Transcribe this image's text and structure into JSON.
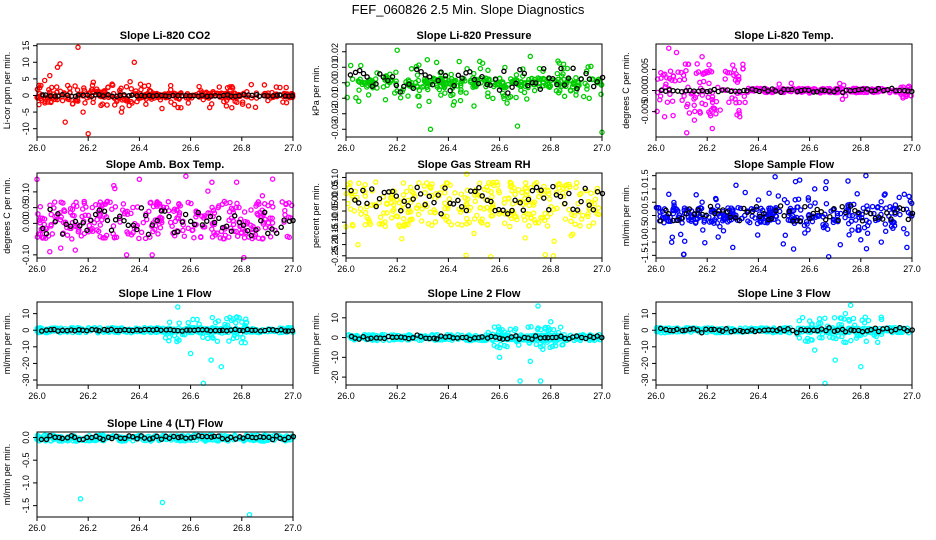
{
  "figure": {
    "title": "FEF_060826  2.5 Min. Slope Diagnostics",
    "overlay_color": "#000000"
  },
  "chart_data": [
    {
      "id": "co2",
      "type": "scatter",
      "title": "Slope Li-820 CO2",
      "ylabel": "Li-cor ppm per min.",
      "color": "#ff0000",
      "xlim": [
        26.0,
        27.0
      ],
      "ylim": [
        -12.5,
        15.5
      ],
      "yticks": [
        -10,
        -5,
        0,
        5,
        10,
        15
      ],
      "ytick_labels": [
        "-10",
        "-5",
        "0",
        "5",
        "10",
        "15"
      ],
      "xticks": [
        26.0,
        26.2,
        26.4,
        26.6,
        26.8,
        27.0
      ],
      "xtick_labels": [
        "26.0",
        "26.2",
        "26.4",
        "26.6",
        "26.8",
        "27.0"
      ],
      "band": [
        -0.8,
        0.8
      ],
      "early": {
        "until": 26.4,
        "spread": 2.2
      },
      "late": {
        "from": 2,
        "spread": 0
      },
      "sparse": [],
      "outlier_rate": 0.2,
      "outliers": [
        [
          26.05,
          6
        ],
        [
          26.08,
          8.5
        ],
        [
          26.09,
          9.5
        ],
        [
          26.11,
          -8
        ],
        [
          26.16,
          14.5
        ],
        [
          26.2,
          -11.5
        ],
        [
          26.12,
          3
        ],
        [
          26.18,
          -5
        ],
        [
          26.25,
          -3
        ],
        [
          26.22,
          4
        ],
        [
          26.33,
          -5
        ],
        [
          26.38,
          10
        ],
        [
          26.14,
          -2.5
        ],
        [
          26.03,
          4.5
        ],
        [
          26.44,
          1.5
        ],
        [
          26.42,
          2.8
        ]
      ],
      "black_band": [
        -0.25,
        0.25
      ],
      "black_spread": 0
    },
    {
      "id": "pressure",
      "type": "scatter",
      "title": "Slope Li-820 Pressure",
      "ylabel": "kPa per min.",
      "color": "#00cc00",
      "xlim": [
        26.0,
        27.0
      ],
      "ylim": [
        -0.035,
        0.025
      ],
      "yticks": [
        -0.03,
        -0.02,
        -0.01,
        0.0,
        0.01,
        0.02
      ],
      "ytick_labels": [
        "-0.03",
        "-0.02",
        "-0.01",
        "0.00",
        "0.01",
        "0.02"
      ],
      "xticks": [
        26.0,
        26.2,
        26.4,
        26.6,
        26.8,
        27.0
      ],
      "xtick_labels": [
        "26.0",
        "26.2",
        "26.4",
        "26.6",
        "26.8",
        "27.0"
      ],
      "band": [
        -0.003,
        0.003
      ],
      "early": {
        "until": 26.0,
        "spread": 0
      },
      "late": {
        "from": 2,
        "spread": 0
      },
      "sparse": [],
      "outlier_rate": 0.4,
      "outliers": [
        [
          26.2,
          0.021
        ],
        [
          26.33,
          -0.03
        ],
        [
          26.67,
          -0.028
        ],
        [
          26.72,
          0.017
        ],
        [
          27.0,
          -0.032
        ],
        [
          26.05,
          -0.012
        ],
        [
          26.5,
          -0.015
        ],
        [
          26.85,
          0.012
        ],
        [
          26.95,
          -0.01
        ]
      ],
      "black_band": [
        -0.004,
        0.008
      ],
      "black_spread": 0.004
    },
    {
      "id": "temp",
      "type": "scatter",
      "title": "Slope Li-820 Temp.",
      "ylabel": "degrees C per min.",
      "color": "#ff00ff",
      "xlim": [
        26.0,
        27.0
      ],
      "ylim": [
        -0.011,
        0.011
      ],
      "yticks": [
        -0.005,
        0.0,
        0.005
      ],
      "ytick_labels": [
        "-0.005",
        "0.000",
        "0.005"
      ],
      "xticks": [
        26.0,
        26.2,
        26.4,
        26.6,
        26.8,
        27.0
      ],
      "xtick_labels": [
        "26.0",
        "26.2",
        "26.4",
        "26.6",
        "26.8",
        "27.0"
      ],
      "band": [
        -0.0005,
        0.0005
      ],
      "early": {
        "until": 26.35,
        "spread": 0.006
      },
      "late": {
        "from": 26.95,
        "spread": 0.0015
      },
      "sparse": [],
      "outlier_rate": 0.05,
      "outliers": [
        [
          26.05,
          0.01
        ],
        [
          26.08,
          0.009
        ],
        [
          26.12,
          -0.01
        ],
        [
          26.18,
          0.008
        ],
        [
          26.22,
          -0.009
        ],
        [
          26.3,
          0.006
        ],
        [
          26.15,
          -0.007
        ]
      ],
      "black_band": [
        -0.0003,
        0.0003
      ],
      "black_spread": 0.0003
    },
    {
      "id": "boxtemp",
      "type": "scatter",
      "title": "Slope Amb. Box Temp.",
      "ylabel": "degrees C per min.",
      "color": "#ff00ff",
      "xlim": [
        26.0,
        27.0
      ],
      "ylim": [
        -0.11,
        0.16
      ],
      "yticks": [
        -0.1,
        0.0,
        0.05,
        0.1
      ],
      "ytick_labels": [
        "-0.10",
        "0.00",
        "0.05",
        "0.10"
      ],
      "xticks": [
        26.0,
        26.2,
        26.4,
        26.6,
        26.8,
        27.0
      ],
      "xtick_labels": [
        "26.0",
        "26.2",
        "26.4",
        "26.6",
        "26.8",
        "27.0"
      ],
      "band": [
        -0.05,
        0.07
      ],
      "early": {
        "until": 26.0,
        "spread": 0
      },
      "late": {
        "from": 2,
        "spread": 0
      },
      "sparse": [],
      "outlier_rate": 0.1,
      "outliers": [
        [
          26.0,
          0.14
        ],
        [
          26.4,
          0.14
        ],
        [
          26.35,
          -0.1
        ],
        [
          26.05,
          -0.09
        ],
        [
          26.45,
          -0.1
        ],
        [
          26.3,
          0.12
        ]
      ],
      "black_band": [
        -0.04,
        0.05
      ],
      "black_spread": 0
    },
    {
      "id": "rh",
      "type": "scatter",
      "title": "Slope Gas Stream RH",
      "ylabel": "percent per min.",
      "color": "#ffff00",
      "xlim": [
        26.0,
        27.0
      ],
      "ylim": [
        -0.26,
        0.12
      ],
      "yticks": [
        -0.25,
        -0.2,
        -0.15,
        -0.1,
        -0.05,
        0.0,
        0.05,
        0.1
      ],
      "ytick_labels": [
        "-0.25",
        "-0.20",
        "-0.15",
        "-0.10",
        "-0.05",
        "0.00",
        "0.05",
        "0.10"
      ],
      "xticks": [
        26.0,
        26.2,
        26.4,
        26.6,
        26.8,
        27.0
      ],
      "xtick_labels": [
        "26.0",
        "26.2",
        "26.4",
        "26.6",
        "26.8",
        "27.0"
      ],
      "band": [
        -0.12,
        0.08
      ],
      "early": {
        "until": 26.0,
        "spread": 0
      },
      "late": {
        "from": 2,
        "spread": 0
      },
      "sparse": [],
      "outlier_rate": 0.1,
      "outliers": [
        [
          26.81,
          -0.25
        ],
        [
          26.7,
          -0.17
        ],
        [
          26.88,
          -0.16
        ],
        [
          26.0,
          -0.12
        ],
        [
          26.5,
          -0.15
        ]
      ],
      "black_band": [
        -0.07,
        0.06
      ],
      "black_spread": 0.01
    },
    {
      "id": "sampleflow",
      "type": "scatter",
      "title": "Slope Sample Flow",
      "ylabel": "ml/min per min.",
      "color": "#0000ff",
      "xlim": [
        26.0,
        27.0
      ],
      "ylim": [
        -1.6,
        1.6
      ],
      "yticks": [
        -1.5,
        -1.0,
        -0.5,
        0.0,
        0.5,
        1.0,
        1.5
      ],
      "ytick_labels": [
        "-1.5",
        "-1.0",
        "-0.5",
        "0.0",
        "0.5",
        "1.0",
        "1.5"
      ],
      "xticks": [
        26.0,
        26.2,
        26.4,
        26.6,
        26.8,
        27.0
      ],
      "xtick_labels": [
        "26.0",
        "26.2",
        "26.4",
        "26.6",
        "26.8",
        "27.0"
      ],
      "band": [
        -0.3,
        0.3
      ],
      "early": {
        "until": 26.0,
        "spread": 0
      },
      "late": {
        "from": 26.55,
        "spread": 0.5
      },
      "sparse": [],
      "outlier_rate": 0.2,
      "outliers": [
        [
          26.3,
          -1.2
        ],
        [
          26.05,
          0.8
        ],
        [
          26.75,
          1.3
        ],
        [
          26.82,
          1.5
        ],
        [
          26.97,
          0.8
        ],
        [
          26.98,
          -1.2
        ],
        [
          26.18,
          0.5
        ],
        [
          26.88,
          -1.0
        ],
        [
          26.62,
          1.0
        ],
        [
          26.72,
          -1.1
        ]
      ],
      "black_band": [
        -0.2,
        0.35
      ],
      "black_spread": 0.1
    },
    {
      "id": "line1",
      "type": "scatter",
      "title": "Slope Line 1 Flow",
      "ylabel": "ml/min per min.",
      "color": "#00ffff",
      "xlim": [
        26.0,
        27.0
      ],
      "ylim": [
        -33,
        17
      ],
      "yticks": [
        -30,
        -20,
        -10,
        0,
        10
      ],
      "ytick_labels": [
        "-30",
        "-20",
        "-10",
        "0",
        "10"
      ],
      "xticks": [
        26.0,
        26.2,
        26.4,
        26.6,
        26.8,
        27.0
      ],
      "xtick_labels": [
        "26.0",
        "26.2",
        "26.4",
        "26.6",
        "26.8",
        "27.0"
      ],
      "band": [
        -1.5,
        1.5
      ],
      "early": {
        "until": 26.0,
        "spread": 0
      },
      "late": {
        "from": 2,
        "spread": 0
      },
      "sparse": [
        [
          26.5,
          26.82,
          8
        ]
      ],
      "outlier_rate": 0,
      "outliers": [
        [
          26.65,
          -32
        ],
        [
          26.72,
          -22
        ],
        [
          26.55,
          14
        ],
        [
          26.6,
          -14
        ],
        [
          26.68,
          -18
        ],
        [
          26.78,
          8
        ]
      ],
      "black_band": [
        -0.5,
        0.5
      ],
      "black_spread": 0
    },
    {
      "id": "line2",
      "type": "scatter",
      "title": "Slope Line 2 Flow",
      "ylabel": "ml/min per min.",
      "color": "#00ffff",
      "xlim": [
        26.0,
        27.0
      ],
      "ylim": [
        -24,
        18
      ],
      "yticks": [
        -20,
        -10,
        0,
        10
      ],
      "ytick_labels": [
        "-20",
        "-10",
        "0",
        "10"
      ],
      "xticks": [
        26.0,
        26.2,
        26.4,
        26.6,
        26.8,
        27.0
      ],
      "xtick_labels": [
        "26.0",
        "26.2",
        "26.4",
        "26.6",
        "26.8",
        "27.0"
      ],
      "band": [
        -1.5,
        1.5
      ],
      "early": {
        "until": 26.0,
        "spread": 0
      },
      "late": {
        "from": 2,
        "spread": 0
      },
      "sparse": [
        [
          26.55,
          26.85,
          6
        ]
      ],
      "outlier_rate": 0,
      "outliers": [
        [
          26.76,
          -22
        ],
        [
          26.68,
          -22
        ],
        [
          26.75,
          16
        ],
        [
          26.72,
          -12
        ],
        [
          26.6,
          -10
        ],
        [
          26.8,
          8
        ]
      ],
      "black_band": [
        -0.8,
        0.8
      ],
      "black_spread": 0.5
    },
    {
      "id": "line3",
      "type": "scatter",
      "title": "Slope Line 3 Flow",
      "ylabel": "ml/min per min.",
      "color": "#00ffff",
      "xlim": [
        26.0,
        27.0
      ],
      "ylim": [
        -33,
        17
      ],
      "yticks": [
        -30,
        -20,
        -10,
        0,
        10
      ],
      "ytick_labels": [
        "-30",
        "-20",
        "-10",
        "0",
        "10"
      ],
      "xticks": [
        26.0,
        26.2,
        26.4,
        26.6,
        26.8,
        27.0
      ],
      "xtick_labels": [
        "26.0",
        "26.2",
        "26.4",
        "26.6",
        "26.8",
        "27.0"
      ],
      "band": [
        -1.5,
        1.5
      ],
      "early": {
        "until": 26.0,
        "spread": 0
      },
      "late": {
        "from": 2,
        "spread": 0
      },
      "sparse": [
        [
          26.55,
          26.9,
          8
        ]
      ],
      "outlier_rate": 0,
      "outliers": [
        [
          26.66,
          -32
        ],
        [
          26.8,
          -22
        ],
        [
          26.76,
          15
        ],
        [
          26.7,
          -18
        ],
        [
          26.74,
          10
        ],
        [
          26.62,
          -12
        ]
      ],
      "black_band": [
        -1.0,
        1.0
      ],
      "black_spread": 0.8
    },
    {
      "id": "line4",
      "type": "scatter",
      "title": "Slope Line 4 (LT) Flow",
      "ylabel": "ml/min per min.",
      "color": "#00ffff",
      "xlim": [
        26.0,
        27.0
      ],
      "ylim": [
        -1.75,
        0.12
      ],
      "yticks": [
        -1.5,
        -1.0,
        -0.5,
        0.0
      ],
      "ytick_labels": [
        "-1.5",
        "-1.0",
        "-0.5",
        "0.0"
      ],
      "xticks": [
        26.0,
        26.2,
        26.4,
        26.6,
        26.8,
        27.0
      ],
      "xtick_labels": [
        "26.0",
        "26.2",
        "26.4",
        "26.6",
        "26.8",
        "27.0"
      ],
      "band": [
        -0.08,
        0.05
      ],
      "early": {
        "until": 26.0,
        "spread": 0
      },
      "late": {
        "from": 2,
        "spread": 0
      },
      "sparse": [],
      "outlier_rate": 0,
      "outliers": [
        [
          26.17,
          -1.35
        ],
        [
          26.49,
          -1.43
        ],
        [
          26.83,
          -1.7
        ]
      ],
      "black_band": [
        -0.05,
        0.04
      ],
      "black_spread": 0
    }
  ]
}
